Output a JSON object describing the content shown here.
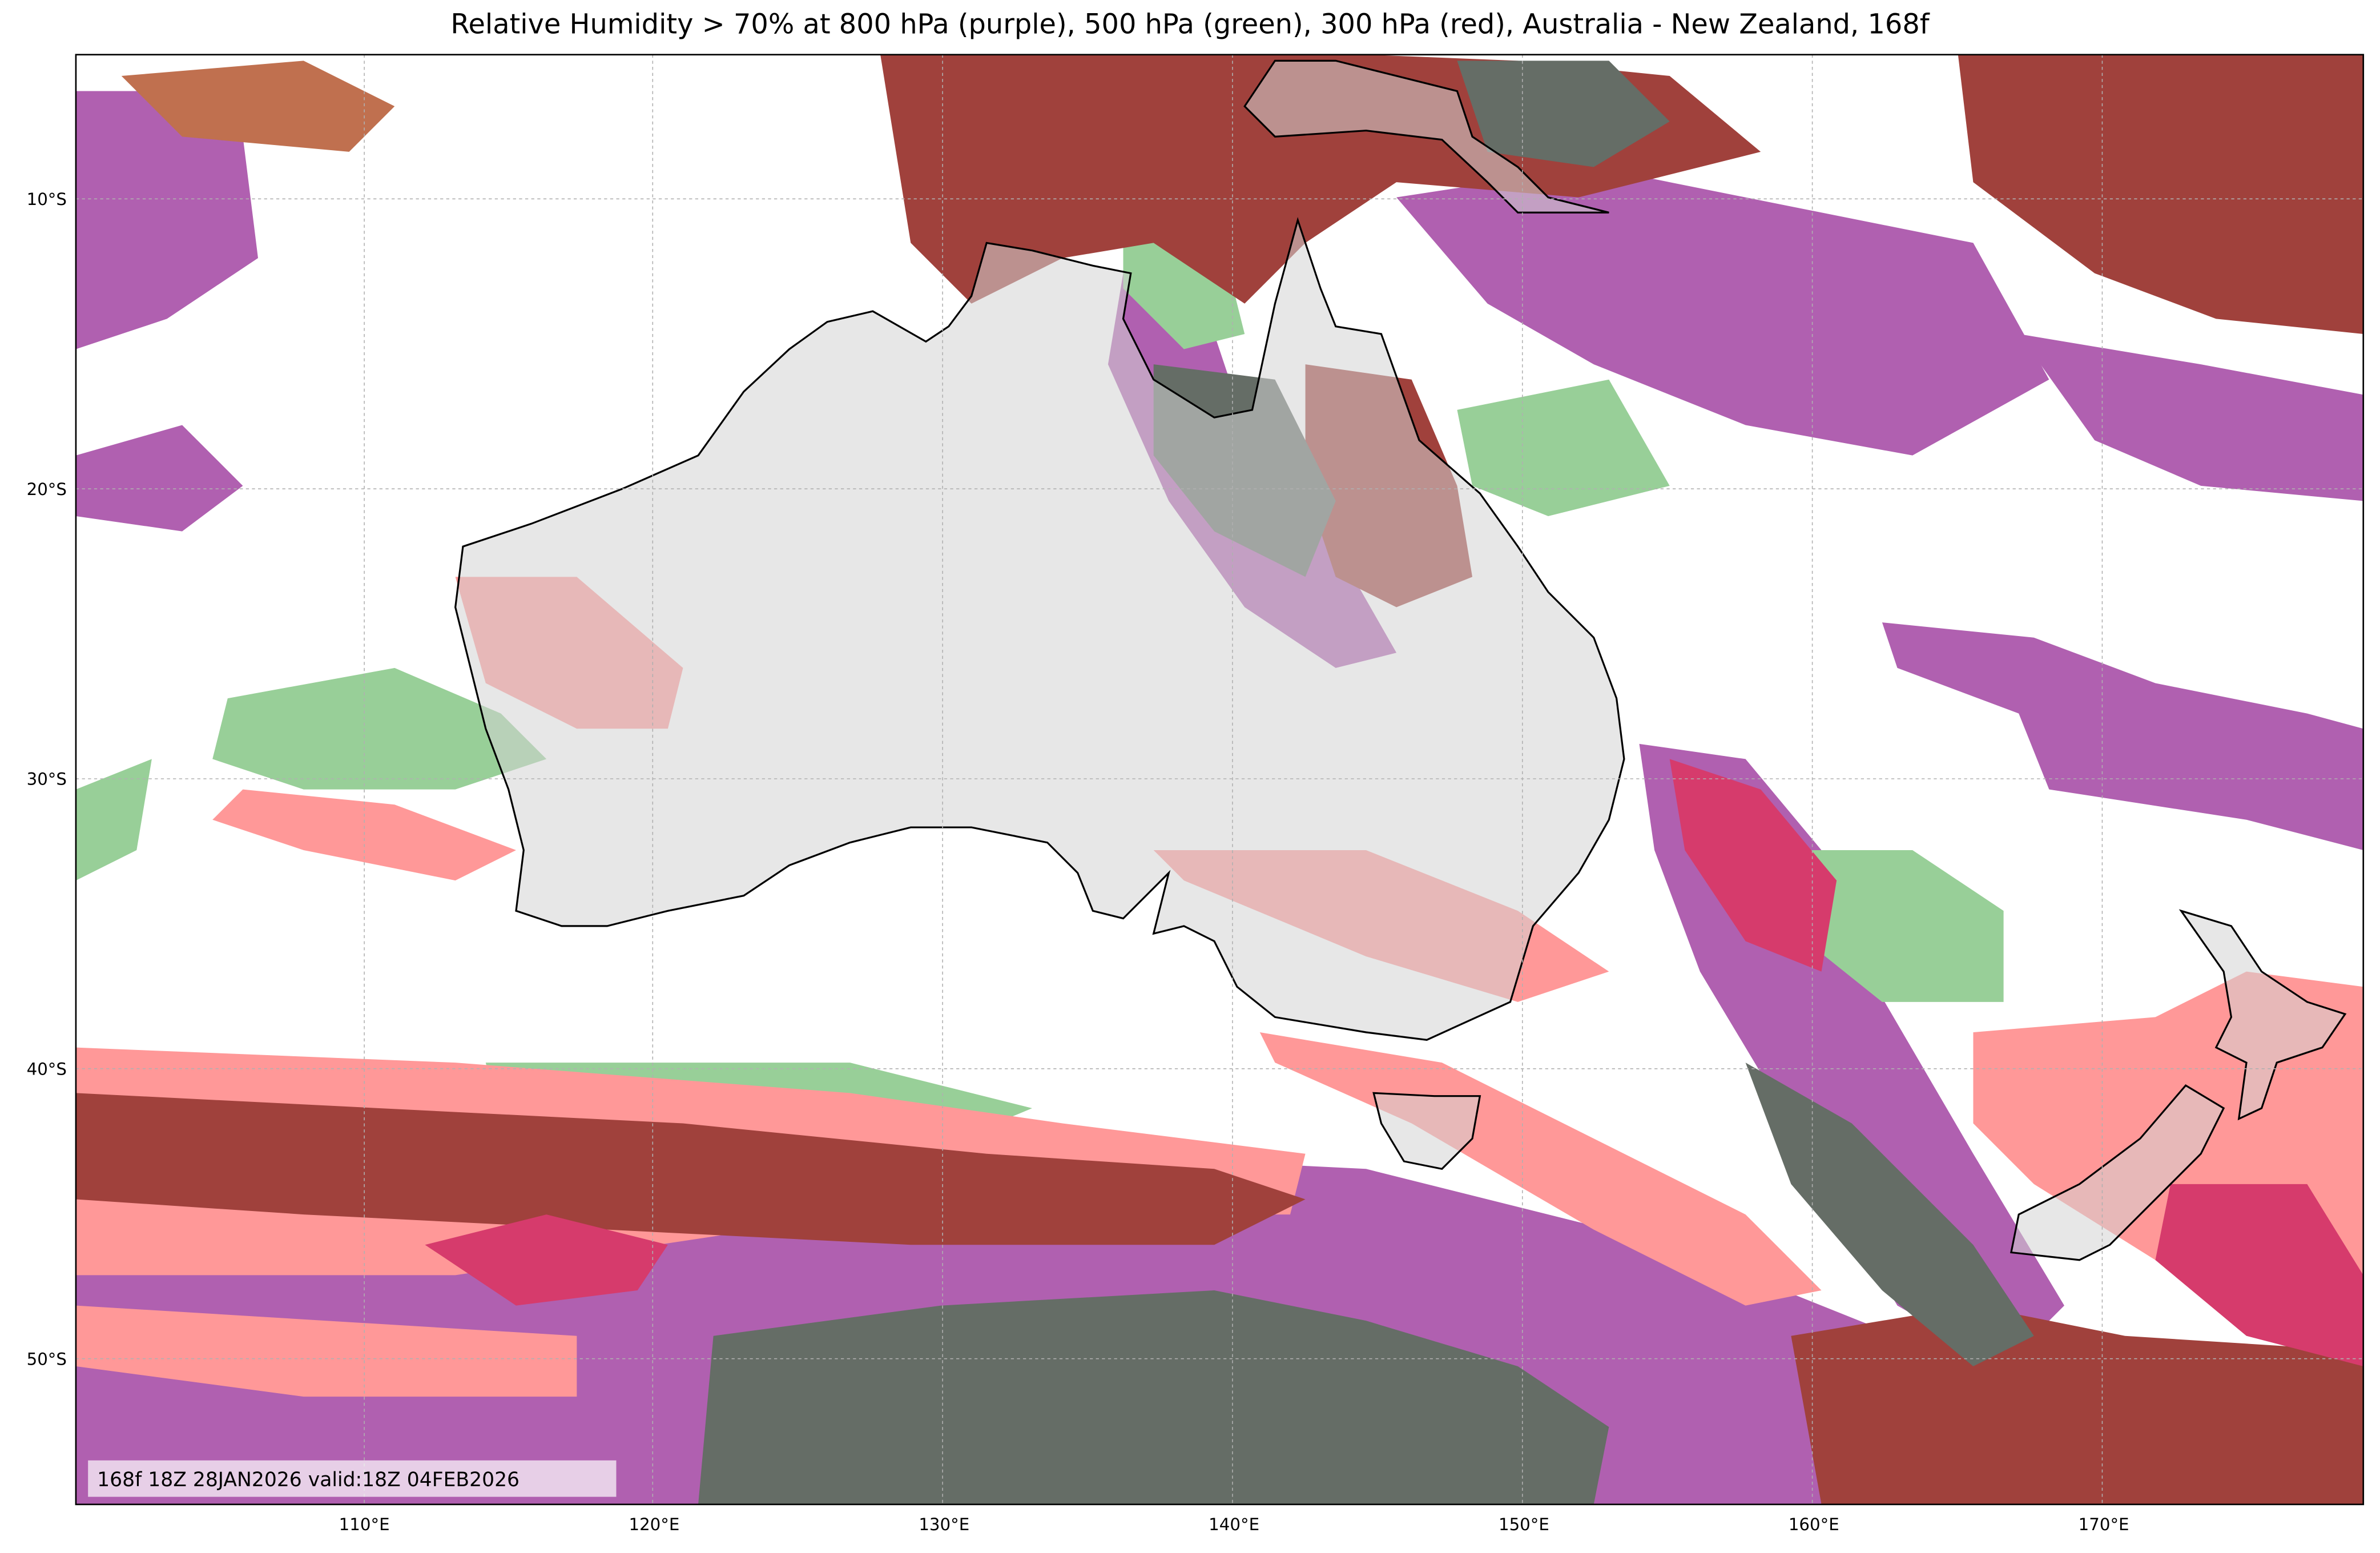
{
  "title": "Relative Humidity > 70% at 800 hPa (purple), 500 hPa (green), 300 hPa (red), Australia - New Zealand, 168f",
  "lat_labels": [
    "10°S",
    "20°S",
    "30°S",
    "40°S",
    "50°S"
  ],
  "lon_labels": [
    "110°E",
    "120°E",
    "130°E",
    "140°E",
    "150°E",
    "160°E",
    "170°E"
  ],
  "info": "168f 18Z 28JAN2026 valid:18Z 04FEB2026"
}
